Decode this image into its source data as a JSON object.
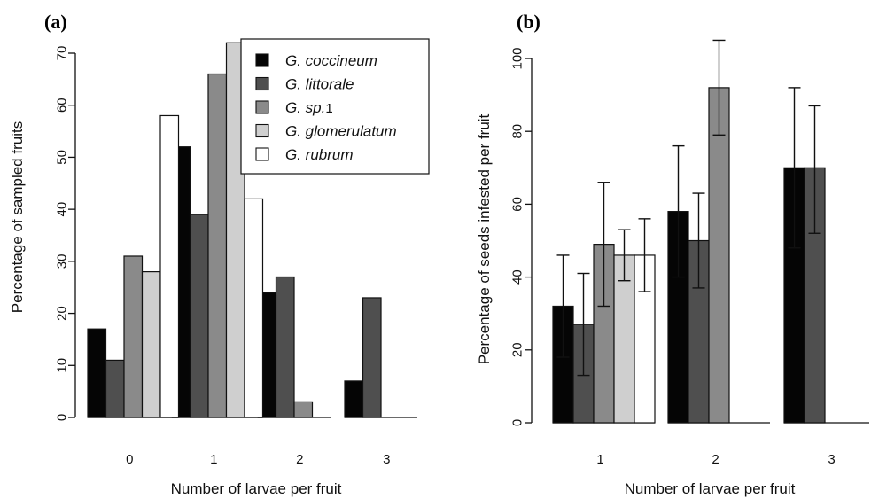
{
  "colors": {
    "G. coccineum": "#050505",
    "G. littorale": "#4f4f4f",
    "G. sp.1": "#8a8a8a",
    "G. glomerulatum": "#cfcfcf",
    "G. rubrum": "#ffffff"
  },
  "legend": {
    "entries": [
      {
        "name": "G. coccineum",
        "label": "G. coccineum",
        "suffix": ""
      },
      {
        "name": "G. littorale",
        "label": "G. littorale",
        "suffix": ""
      },
      {
        "name": "G. sp.1",
        "label": "G. sp.",
        "suffix": "1"
      },
      {
        "name": "G. glomerulatum",
        "label": "G. glomerulatum",
        "suffix": ""
      },
      {
        "name": "G. rubrum",
        "label": "G. rubrum",
        "suffix": ""
      }
    ],
    "placement": "top-right of panel (a)"
  },
  "chart_data": [
    {
      "panel": "(a)",
      "type": "bar",
      "xlabel": "Number of larvae per fruit",
      "ylabel": "Percentage of sampled fruits",
      "ylim": [
        0,
        70
      ],
      "yticks": [
        0,
        10,
        20,
        30,
        40,
        50,
        60,
        70
      ],
      "grid": false,
      "categories": [
        "0",
        "1",
        "2",
        "3"
      ],
      "series": [
        {
          "name": "G. coccineum",
          "values": [
            17,
            52,
            24,
            7
          ]
        },
        {
          "name": "G. littorale",
          "values": [
            11,
            39,
            27,
            23
          ]
        },
        {
          "name": "G. sp.1",
          "values": [
            31,
            66,
            3,
            0
          ]
        },
        {
          "name": "G. glomerulatum",
          "values": [
            28,
            72,
            0,
            0
          ]
        },
        {
          "name": "G. rubrum",
          "values": [
            58,
            42,
            0,
            0
          ]
        }
      ]
    },
    {
      "panel": "(b)",
      "type": "bar",
      "xlabel": "Number of larvae per fruit",
      "ylabel": "Percentage of seeds infested per fruit",
      "ylim": [
        0,
        100
      ],
      "yticks": [
        0,
        20,
        40,
        60,
        80,
        100
      ],
      "grid": false,
      "error_bars": true,
      "categories": [
        "1",
        "2",
        "3"
      ],
      "series": [
        {
          "name": "G. coccineum",
          "values": [
            32,
            58,
            70
          ],
          "err_low": [
            18,
            40,
            48
          ],
          "err_high": [
            46,
            76,
            92
          ]
        },
        {
          "name": "G. littorale",
          "values": [
            27,
            50,
            70
          ],
          "err_low": [
            13,
            37,
            52
          ],
          "err_high": [
            41,
            63,
            87
          ]
        },
        {
          "name": "G. sp.1",
          "values": [
            49,
            92,
            null
          ],
          "err_low": [
            32,
            79,
            null
          ],
          "err_high": [
            66,
            105,
            null
          ]
        },
        {
          "name": "G. glomerulatum",
          "values": [
            46,
            null,
            null
          ],
          "err_low": [
            39,
            null,
            null
          ],
          "err_high": [
            53,
            null,
            null
          ]
        },
        {
          "name": "G. rubrum",
          "values": [
            46,
            null,
            null
          ],
          "err_low": [
            36,
            null,
            null
          ],
          "err_high": [
            56,
            null,
            null
          ]
        }
      ]
    }
  ]
}
